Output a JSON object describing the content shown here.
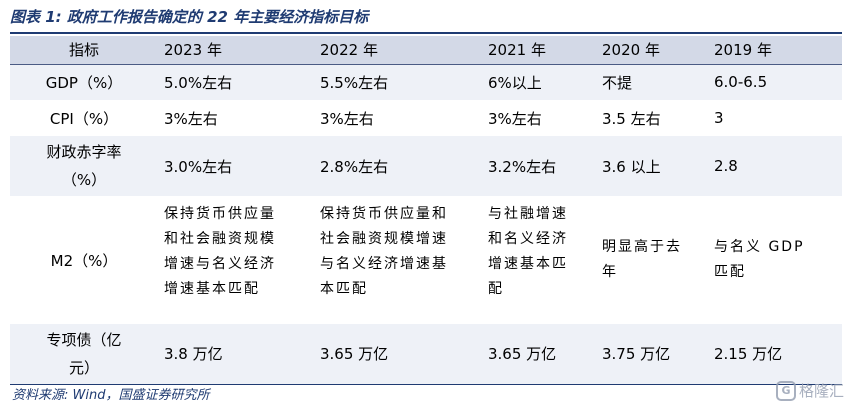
{
  "title": "图表 1:  政府工作报告确定的 22 年主要经济指标目标",
  "table": {
    "headers": [
      "指标",
      "2023 年",
      "2022 年",
      "2021 年",
      "2020 年",
      "2019 年"
    ],
    "rows": {
      "gdp": {
        "label": "GDP（%）",
        "values": [
          "5.0%左右",
          "5.5%左右",
          "6%以上",
          "不提",
          "6.0-6.5"
        ]
      },
      "cpi": {
        "label": "CPI（%）",
        "values": [
          "3%左右",
          "3%左右",
          "3%左右",
          "3.5 左右",
          "3"
        ]
      },
      "fiscal": {
        "label_line1": "财政赤字率",
        "label_line2": "（%）",
        "values": [
          "3.0%左右",
          "2.8%左右",
          "3.2%左右",
          "3.6 以上",
          "2.8"
        ]
      },
      "m2": {
        "label": "M2（%）",
        "col2023": [
          "保持货币供应量",
          "和社会融资规模",
          "增速与名义经济",
          "增速基本匹配"
        ],
        "col2022": [
          "保持货币供应量和",
          "社会融资规模增速",
          "与名义经济增速基",
          "本匹配"
        ],
        "col2021": [
          "与社融增速",
          "和名义经济",
          "增速基本匹",
          "配"
        ],
        "col2020": [
          "明显高于去",
          "年"
        ],
        "col2019": [
          "与名义 GDP",
          "匹配"
        ]
      },
      "bond": {
        "label_line1": "专项债（亿",
        "label_line2": "元）",
        "values": [
          "3.8 万亿",
          "3.65 万亿",
          "3.65 万亿",
          "3.75 万亿",
          "2.15 万亿"
        ]
      }
    }
  },
  "source": "资料来源:  Wind，国盛证券研究所",
  "watermark": {
    "logo": "G",
    "text": "格隆汇"
  },
  "colors": {
    "title": "#1f3b72",
    "header_bg": "#d3d9e7",
    "band_bg": "#eef1f7"
  }
}
